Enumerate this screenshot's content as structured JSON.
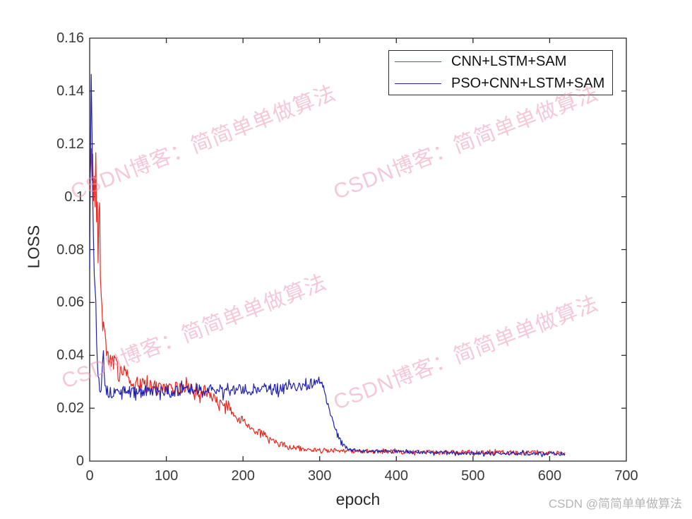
{
  "watermark": {
    "diagonal_text": "CSDN博客：简简单单做算法",
    "footer_text": "CSDN @简简单单做算法",
    "pink_color": "#ec92b4",
    "gray_color": "#b5b5b5"
  },
  "chart_data": {
    "type": "line",
    "title": "",
    "xlabel": "epoch",
    "ylabel": "LOSS",
    "xlim": [
      0,
      700
    ],
    "ylim": [
      0,
      0.16
    ],
    "xticks": [
      0,
      100,
      200,
      300,
      400,
      500,
      600,
      700
    ],
    "xtick_labels": [
      "0",
      "100",
      "200",
      "300",
      "400",
      "500",
      "600",
      "700"
    ],
    "yticks": [
      0,
      0.02,
      0.04,
      0.06,
      0.08,
      0.1,
      0.12,
      0.14,
      0.16
    ],
    "ytick_labels": [
      "0",
      "0.02",
      "0.04",
      "0.06",
      "0.08",
      "0.1",
      "0.12",
      "0.14",
      "0.16"
    ],
    "grid": false,
    "axis_color": "#262626",
    "legend_position": "top-right",
    "x_data_end": 620,
    "series": [
      {
        "name": "CNN+LSTM+SAM",
        "color": "#e8281e",
        "seed": 20,
        "x_end": 620,
        "anchors": [
          [
            0,
            0.1
          ],
          [
            2,
            0.119
          ],
          [
            3,
            0.104
          ],
          [
            4,
            0.117
          ],
          [
            5,
            0.101
          ],
          [
            6,
            0.11
          ],
          [
            7,
            0.099
          ],
          [
            8,
            0.112
          ],
          [
            9,
            0.094
          ],
          [
            10,
            0.102
          ],
          [
            11,
            0.076
          ],
          [
            12,
            0.09
          ],
          [
            13,
            0.094
          ],
          [
            14,
            0.072
          ],
          [
            15,
            0.065
          ],
          [
            17,
            0.052
          ],
          [
            20,
            0.046
          ],
          [
            24,
            0.041
          ],
          [
            28,
            0.036
          ],
          [
            33,
            0.039
          ],
          [
            38,
            0.032
          ],
          [
            45,
            0.036
          ],
          [
            55,
            0.031
          ],
          [
            65,
            0.029
          ],
          [
            80,
            0.028
          ],
          [
            100,
            0.027
          ],
          [
            120,
            0.0275
          ],
          [
            140,
            0.027
          ],
          [
            152,
            0.026
          ],
          [
            165,
            0.023
          ],
          [
            180,
            0.02
          ],
          [
            195,
            0.016
          ],
          [
            210,
            0.013
          ],
          [
            225,
            0.01
          ],
          [
            240,
            0.0075
          ],
          [
            255,
            0.006
          ],
          [
            270,
            0.005
          ],
          [
            285,
            0.0045
          ],
          [
            310,
            0.004
          ],
          [
            360,
            0.0038
          ],
          [
            420,
            0.0035
          ],
          [
            500,
            0.0032
          ],
          [
            560,
            0.0033
          ],
          [
            620,
            0.003
          ]
        ],
        "noise_spans": [
          [
            0,
            10,
            0.005
          ],
          [
            10,
            20,
            0.004
          ],
          [
            20,
            60,
            0.0035
          ],
          [
            60,
            150,
            0.0028
          ],
          [
            150,
            230,
            0.0018
          ],
          [
            230,
            280,
            0.001
          ],
          [
            280,
            620,
            0.0008
          ]
        ]
      },
      {
        "name": "PSO+CNN+LSTM+SAM",
        "color": "#2222b2",
        "seed": 13,
        "x_end": 620,
        "anchors": [
          [
            0,
            0.072
          ],
          [
            1,
            0.12
          ],
          [
            2,
            0.153
          ],
          [
            3,
            0.128
          ],
          [
            4,
            0.1
          ],
          [
            5,
            0.082
          ],
          [
            6,
            0.072
          ],
          [
            7,
            0.065
          ],
          [
            8,
            0.06
          ],
          [
            9,
            0.048
          ],
          [
            10,
            0.038
          ],
          [
            11,
            0.033
          ],
          [
            12,
            0.03
          ],
          [
            13,
            0.029
          ],
          [
            14,
            0.031
          ],
          [
            15,
            0.028
          ],
          [
            16,
            0.034
          ],
          [
            17,
            0.04
          ],
          [
            18,
            0.043
          ],
          [
            19,
            0.036
          ],
          [
            20,
            0.031
          ],
          [
            22,
            0.027
          ],
          [
            25,
            0.0255
          ],
          [
            30,
            0.026
          ],
          [
            40,
            0.0265
          ],
          [
            60,
            0.026
          ],
          [
            80,
            0.0265
          ],
          [
            100,
            0.026
          ],
          [
            130,
            0.027
          ],
          [
            160,
            0.0268
          ],
          [
            200,
            0.027
          ],
          [
            240,
            0.0272
          ],
          [
            270,
            0.028
          ],
          [
            285,
            0.029
          ],
          [
            295,
            0.03
          ],
          [
            300,
            0.0305
          ],
          [
            303,
            0.029
          ],
          [
            306,
            0.026
          ],
          [
            310,
            0.022
          ],
          [
            314,
            0.018
          ],
          [
            318,
            0.014
          ],
          [
            323,
            0.01
          ],
          [
            328,
            0.007
          ],
          [
            333,
            0.005
          ],
          [
            340,
            0.0042
          ],
          [
            360,
            0.0038
          ],
          [
            420,
            0.0034
          ],
          [
            500,
            0.003
          ],
          [
            620,
            0.0028
          ]
        ],
        "noise_spans": [
          [
            0,
            10,
            0.004
          ],
          [
            10,
            22,
            0.003
          ],
          [
            22,
            300,
            0.0022
          ],
          [
            300,
            335,
            0.0012
          ],
          [
            335,
            620,
            0.0007
          ]
        ]
      }
    ]
  }
}
